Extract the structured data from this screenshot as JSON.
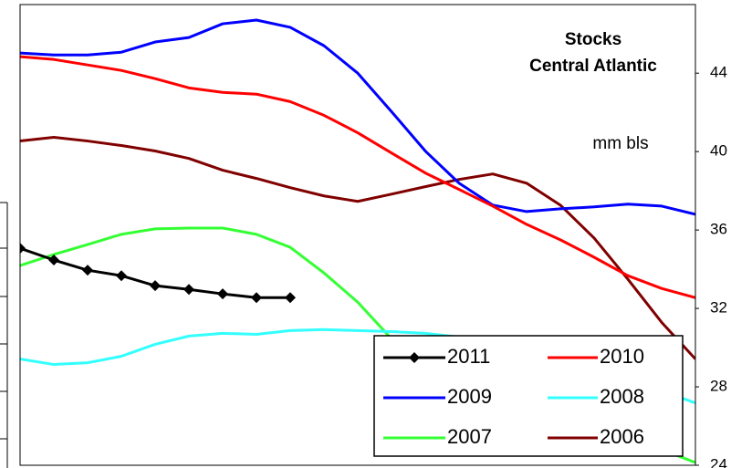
{
  "chart_data": {
    "type": "line",
    "title": "Stocks",
    "subtitle": "Central Atlantic",
    "y_label": "mm bls",
    "y_axis_position": "right",
    "categories": [
      null,
      null,
      null,
      null,
      null,
      null,
      null,
      null,
      null,
      null,
      null,
      null,
      null,
      null,
      null,
      null,
      null,
      null,
      null,
      null,
      null
    ],
    "ylim": [
      24,
      47.5
    ],
    "yticks": [
      24,
      28,
      32,
      36,
      40,
      44
    ],
    "grid": false,
    "legend": "bottom-right",
    "series": [
      {
        "name": "2011",
        "color": "#000000",
        "marker": "diamond",
        "values": [
          35.07,
          34.47,
          33.95,
          33.67,
          33.16,
          32.97,
          32.74,
          32.55,
          32.55,
          null,
          null,
          null,
          null,
          null,
          null,
          null,
          null,
          null,
          null,
          null,
          null
        ]
      },
      {
        "name": "2010",
        "color": "#ff0000",
        "values": [
          44.84,
          44.7,
          44.42,
          44.14,
          43.72,
          43.25,
          43.02,
          42.93,
          42.55,
          41.85,
          40.96,
          39.93,
          38.91,
          38.07,
          37.22,
          36.29,
          35.5,
          34.61,
          33.67,
          33.02,
          32.55
        ]
      },
      {
        "name": "2009",
        "color": "#0000ff",
        "values": [
          45.03,
          44.93,
          44.93,
          45.07,
          45.59,
          45.82,
          46.52,
          46.71,
          46.34,
          45.4,
          44.0,
          42.04,
          40.03,
          38.39,
          37.27,
          36.94,
          37.08,
          37.18,
          37.32,
          37.22,
          36.8
        ]
      },
      {
        "name": "2008",
        "color": "#33ffff",
        "values": [
          29.42,
          29.14,
          29.23,
          29.56,
          30.17,
          30.59,
          30.73,
          30.68,
          30.87,
          30.92,
          30.87,
          30.82,
          30.73,
          30.54,
          30.2,
          29.8,
          29.3,
          28.8,
          28.3,
          27.8,
          27.18
        ]
      },
      {
        "name": "2007",
        "color": "#33ff33",
        "values": [
          34.19,
          34.75,
          35.26,
          35.78,
          36.06,
          36.1,
          36.1,
          35.78,
          35.12,
          33.81,
          32.32,
          30.45,
          28.6,
          27.5,
          26.8,
          26.3,
          25.9,
          25.6,
          25.2,
          24.8,
          24.14
        ]
      },
      {
        "name": "2006",
        "color": "#800000",
        "values": [
          40.54,
          40.73,
          40.54,
          40.31,
          40.03,
          39.65,
          39.05,
          38.63,
          38.16,
          37.74,
          37.46,
          37.83,
          38.21,
          38.58,
          38.86,
          38.39,
          37.27,
          35.59,
          33.49,
          31.29,
          29.42
        ]
      }
    ]
  }
}
